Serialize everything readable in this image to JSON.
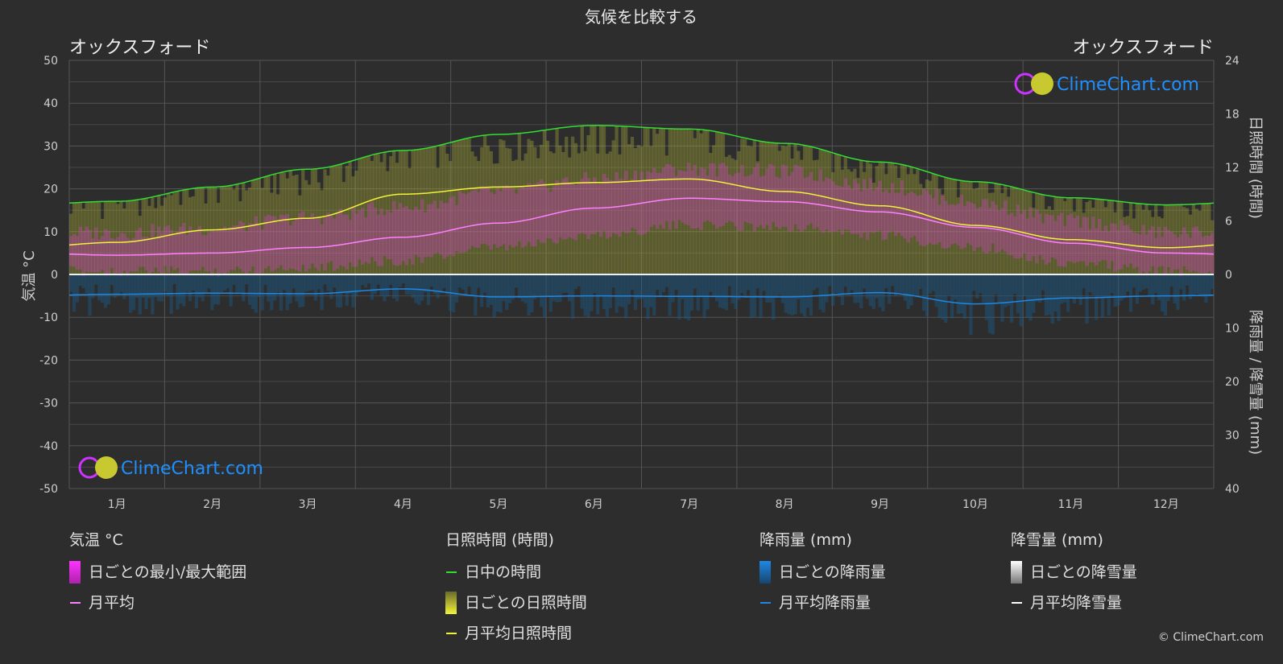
{
  "title": "気候を比較する",
  "city_left": "オックスフォード",
  "city_right": "オックスフォード",
  "logo_text": "ClimeChart.com",
  "copyright": "© ClimeChart.com",
  "colors": {
    "background": "#2d2d2d",
    "daylight": "#33dd33",
    "sunshine_avg": "#f2f23a",
    "sunshine_band": "#a8a83a",
    "temp_band": "#d040c8",
    "temp_avg": "#ff80ff",
    "rain": "#1e88e5",
    "snow": "#ffffff",
    "logo": "#1e90ff"
  },
  "legend": {
    "temperature": {
      "title": "気温 °C",
      "range": "日ごとの最小/最大範囲",
      "avg": "月平均"
    },
    "sunshine": {
      "title": "日照時間 (時間)",
      "daylight": "日中の時間",
      "daily": "日ごとの日照時間",
      "avg": "月平均日照時間"
    },
    "rain": {
      "title": "降雨量 (mm)",
      "daily": "日ごとの降雨量",
      "avg": "月平均降雨量"
    },
    "snow": {
      "title": "降雪量 (mm)",
      "daily": "日ごとの降雪量",
      "avg": "月平均降雪量"
    }
  },
  "chart_data": {
    "type": "line",
    "left_axis_label": "気温 °C",
    "right_axis_label_top": "日照時間 (時間)",
    "right_axis_label_bottom": "降雨量 / 降雪量 (mm)",
    "temp_ylim": [
      -50,
      50
    ],
    "temp_ticks": [
      "50",
      "40",
      "30",
      "20",
      "10",
      "0",
      "-10",
      "-20",
      "-30",
      "-40",
      "-50"
    ],
    "sun_ylim": [
      0,
      24
    ],
    "sun_ticks": [
      "24",
      "18",
      "12",
      "6",
      "0"
    ],
    "precip_ylim": [
      0,
      40
    ],
    "precip_ticks": [
      "10",
      "20",
      "30",
      "40"
    ],
    "categories": [
      "1月",
      "2月",
      "3月",
      "4月",
      "5月",
      "6月",
      "7月",
      "8月",
      "9月",
      "10月",
      "11月",
      "12月"
    ],
    "series": [
      {
        "name": "日中の時間",
        "axis": "sunshine",
        "values": [
          8.2,
          9.8,
          11.8,
          13.9,
          15.7,
          16.7,
          16.3,
          14.7,
          12.6,
          10.4,
          8.6,
          7.8
        ]
      },
      {
        "name": "月平均日照時間",
        "axis": "sunshine",
        "values": [
          3.6,
          5.0,
          6.3,
          9.0,
          9.8,
          10.3,
          10.7,
          9.3,
          7.7,
          5.5,
          3.9,
          3.0
        ]
      },
      {
        "name": "月平均",
        "axis": "temperature",
        "values": [
          4.5,
          5.0,
          6.3,
          8.7,
          12.0,
          15.5,
          17.8,
          17.0,
          14.6,
          11.0,
          7.3,
          5.0
        ]
      },
      {
        "name": "月平均降雨量",
        "axis": "precipitation",
        "values": [
          3.7,
          3.5,
          3.6,
          2.7,
          4.2,
          4.0,
          4.1,
          4.2,
          3.4,
          5.5,
          4.4,
          4.0
        ]
      },
      {
        "name": "月平均降雪量",
        "axis": "precipitation",
        "values": [
          0,
          0,
          0,
          0,
          0,
          0,
          0,
          0,
          0,
          0,
          0,
          0
        ]
      }
    ],
    "temp_range": {
      "min": [
        2.0,
        2.0,
        3.0,
        4.5,
        7.5,
        10.5,
        12.8,
        12.5,
        10.3,
        7.5,
        4.0,
        2.0
      ],
      "max": [
        8.0,
        9.0,
        11.5,
        14.0,
        17.5,
        20.5,
        23.0,
        22.3,
        19.0,
        15.0,
        10.8,
        8.0
      ]
    }
  }
}
